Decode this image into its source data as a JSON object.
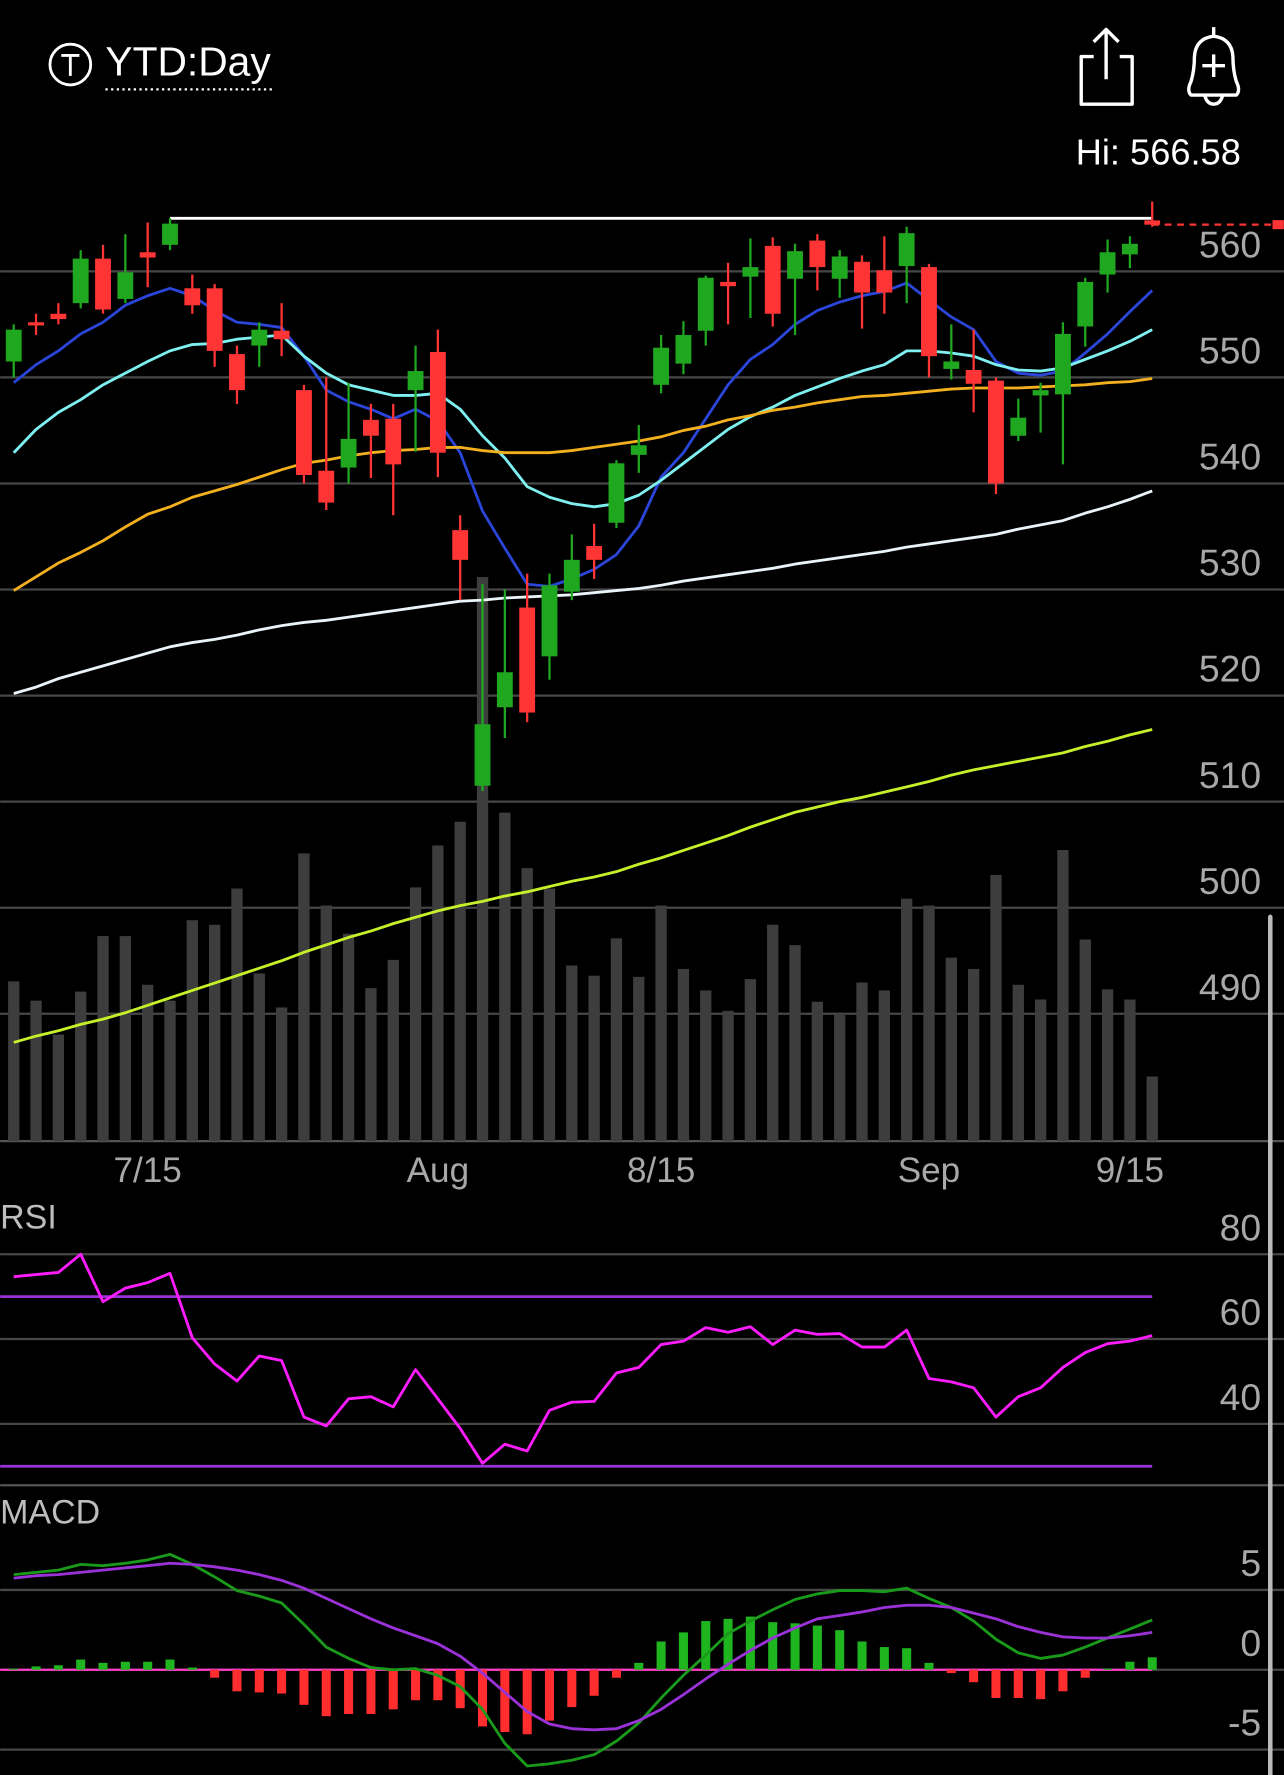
{
  "header": {
    "range": "YTD:Day",
    "high": "Hi: 566.58"
  },
  "chart_data": [
    {
      "type": "candlestick",
      "categories": [
        null,
        null,
        null,
        null,
        null,
        null,
        "7/15",
        null,
        null,
        null,
        null,
        null,
        null,
        null,
        null,
        null,
        null,
        null,
        null,
        "Aug",
        null,
        null,
        null,
        null,
        null,
        null,
        null,
        null,
        null,
        "8/15",
        null,
        null,
        null,
        null,
        null,
        null,
        null,
        null,
        null,
        null,
        null,
        "Sep",
        null,
        null,
        null,
        null,
        null,
        null,
        null,
        null,
        "9/15",
        null
      ],
      "open": [
        551.5,
        555.2,
        556,
        557,
        561.2,
        557.4,
        561.8,
        562.5,
        558.4,
        558.4,
        552.2,
        553,
        554.4,
        548.8,
        541.2,
        541.5,
        546,
        546.1,
        548.8,
        552.4,
        535.6,
        511.5,
        518.9,
        528.3,
        523.7,
        529.8,
        534.1,
        536.3,
        542.7,
        549.3,
        551.3,
        554.4,
        559,
        559.5,
        562.4,
        559.3,
        562.9,
        559.3,
        560.9,
        560.1,
        560.5,
        560.4,
        550.8,
        550.7,
        549.7,
        544.5,
        548.3,
        548.4,
        554.8,
        559.7,
        561.6,
        564.8
      ],
      "close": [
        554.5,
        554.9,
        555.5,
        561.2,
        556.4,
        559.9,
        561.3,
        564.5,
        556.8,
        552.5,
        548.8,
        554.5,
        553.6,
        540.8,
        538.2,
        544.2,
        544.5,
        541.8,
        550.6,
        542.9,
        532.8,
        517.3,
        522.2,
        518.4,
        530.4,
        532.8,
        532.8,
        541.9,
        543.6,
        552.8,
        554,
        559.4,
        558.6,
        560.4,
        556,
        561.9,
        560.4,
        561.4,
        558,
        558,
        563.6,
        552,
        551.5,
        549.4,
        540,
        546.2,
        548.8,
        554.1,
        559,
        561.8,
        562.6,
        564.4
      ],
      "high": [
        555,
        556,
        557,
        562,
        562.5,
        563.5,
        564.6,
        565,
        559.7,
        558.8,
        553,
        555.2,
        557,
        549.3,
        550,
        549.5,
        547.5,
        547.5,
        553,
        554.5,
        537,
        530.5,
        530,
        531.5,
        531.5,
        535.2,
        536.2,
        542.2,
        545.5,
        554,
        555.3,
        559.6,
        560.8,
        563.1,
        563.2,
        562.6,
        563.5,
        562,
        561.5,
        563.3,
        564.2,
        560.7,
        555,
        554.5,
        550,
        548,
        549.5,
        555.2,
        559.4,
        563,
        563.3,
        566.58
      ],
      "low": [
        550,
        554,
        555,
        556.5,
        556,
        557,
        558.5,
        562,
        556,
        551,
        547.5,
        551,
        552,
        540,
        537.5,
        540,
        540.5,
        537,
        543,
        540.6,
        529,
        511,
        516,
        517.5,
        521.5,
        529,
        531,
        535.8,
        541,
        548.5,
        550.3,
        553,
        555,
        555.6,
        554.8,
        554,
        558.2,
        557.5,
        554.6,
        556,
        557,
        550,
        549.8,
        546.7,
        539,
        544,
        544.8,
        541.8,
        552.9,
        558,
        560.3,
        564.2
      ],
      "up_color": "#1fa81f",
      "down_color": "#ff3535",
      "series": [
        {
          "color": "#2a45d8",
          "values": [
            549.5,
            551.2,
            552.5,
            554.1,
            555.2,
            556.8,
            557.7,
            558.4,
            557.7,
            556.3,
            555.2,
            555,
            554.7,
            552,
            548.8,
            547.7,
            547,
            546.1,
            547,
            545.9,
            542.9,
            537.4,
            533.9,
            530.5,
            530.3,
            531,
            531.9,
            533.3,
            536,
            540.6,
            542.9,
            546.1,
            549.3,
            551.7,
            553.1,
            555,
            556.3,
            557.1,
            557.7,
            558.1,
            558.9,
            557.3,
            555.7,
            554.5,
            551.5,
            550.4,
            550.2,
            550.6,
            552.3,
            554.1,
            556.2,
            558.2
          ]
        },
        {
          "color": "#7ff0f0",
          "values": [
            542.9,
            545.1,
            546.7,
            547.9,
            549.3,
            550.4,
            551.5,
            552.5,
            553.1,
            553.2,
            553.6,
            553.8,
            554,
            552,
            550.4,
            549.3,
            548.8,
            548.3,
            548.3,
            548.5,
            547,
            544.5,
            542.4,
            539.7,
            538.7,
            538.1,
            537.8,
            538.1,
            538.9,
            540.3,
            541.9,
            543.5,
            545.1,
            546.3,
            547.2,
            548.3,
            549.1,
            549.9,
            550.6,
            551.2,
            552.5,
            552.5,
            552.3,
            552,
            551.2,
            550.7,
            550.6,
            550.9,
            551.7,
            552.5,
            553.4,
            554.5
          ]
        },
        {
          "color": "#f2b01e",
          "values": [
            529.9,
            531.2,
            532.5,
            533.5,
            534.6,
            535.9,
            537.1,
            537.8,
            538.7,
            539.3,
            539.9,
            540.6,
            541.3,
            541.9,
            542.2,
            542.6,
            542.9,
            543.1,
            543.2,
            543.4,
            543.4,
            543.1,
            542.9,
            542.9,
            542.9,
            543.1,
            543.4,
            543.7,
            544,
            544.4,
            545,
            545.4,
            546,
            546.4,
            546.9,
            547.2,
            547.6,
            547.9,
            548.2,
            548.3,
            548.5,
            548.7,
            548.9,
            549,
            549,
            549,
            549.1,
            549.2,
            549.3,
            549.5,
            549.6,
            549.9
          ]
        },
        {
          "color": "#e8f4f8",
          "values": [
            520.2,
            520.8,
            521.6,
            522.2,
            522.8,
            523.4,
            524,
            524.6,
            525,
            525.3,
            525.7,
            526.2,
            526.6,
            526.9,
            527.1,
            527.4,
            527.7,
            528,
            528.3,
            528.6,
            528.9,
            529,
            529.2,
            529.3,
            529.4,
            529.5,
            529.7,
            529.9,
            530.1,
            530.4,
            530.8,
            531.1,
            531.4,
            531.7,
            532,
            532.4,
            532.7,
            533,
            533.3,
            533.6,
            534,
            534.3,
            534.6,
            534.9,
            535.2,
            535.7,
            536.1,
            536.5,
            537.2,
            537.8,
            538.5,
            539.3
          ]
        },
        {
          "color": "#c6f02a",
          "values": [
            487.3,
            487.9,
            488.4,
            489,
            489.5,
            490.1,
            490.8,
            491.5,
            492.2,
            492.9,
            493.6,
            494.3,
            495,
            495.8,
            496.5,
            497.2,
            497.8,
            498.5,
            499.1,
            499.7,
            500.2,
            500.6,
            501.1,
            501.5,
            502,
            502.5,
            502.9,
            503.4,
            504.1,
            504.7,
            505.4,
            506.1,
            506.8,
            507.6,
            508.3,
            509,
            509.5,
            510,
            510.4,
            510.9,
            511.4,
            511.9,
            512.5,
            513,
            513.4,
            513.8,
            514.2,
            514.6,
            515.2,
            515.7,
            516.3,
            516.8
          ]
        }
      ],
      "volume": {
        "color": "#3d3d3d",
        "values": [
          28.2,
          24.8,
          18.8,
          26.4,
          36.2,
          36.2,
          27.6,
          24.8,
          39,
          38.2,
          44.6,
          29.6,
          23.6,
          50.8,
          41.6,
          36.6,
          27,
          32,
          44.8,
          52.2,
          56.4,
          99.6,
          58,
          48.2,
          44.6,
          31,
          29.2,
          35.8,
          29,
          41.6,
          30.4,
          26.6,
          23,
          28.6,
          38.2,
          34.6,
          24.6,
          22.4,
          28,
          26.6,
          42.8,
          41.6,
          32.4,
          30.4,
          47,
          27.6,
          25,
          51.4,
          35.6,
          26.8,
          25,
          11.4
        ]
      },
      "high_line": 565,
      "ylim": [
        478,
        570
      ],
      "yticks": [
        490,
        500,
        510,
        520,
        530,
        540,
        550,
        560
      ],
      "grid": true
    },
    {
      "type": "line",
      "title": "RSI",
      "series": [
        {
          "color": "#ff1cff",
          "values": [
            74.7,
            75.2,
            75.7,
            80,
            68.8,
            72,
            73.3,
            75.5,
            60.3,
            54.1,
            50.1,
            56,
            54.9,
            41.6,
            39.5,
            45.9,
            46.4,
            44,
            52.8,
            45.9,
            38.9,
            30.7,
            35.2,
            33.6,
            43.2,
            45.1,
            45.3,
            52,
            53.3,
            58.7,
            59.5,
            62.7,
            61.6,
            62.9,
            58.7,
            62.1,
            61.1,
            61.3,
            58.1,
            58.1,
            62.1,
            50.7,
            49.9,
            48.5,
            41.6,
            46.4,
            48.5,
            53.3,
            56.8,
            58.9,
            59.5,
            60.8
          ]
        }
      ],
      "levels": [
        70,
        30
      ],
      "level_color": "#9a32d8",
      "ylim": [
        25,
        93
      ],
      "yticks": [
        40,
        60,
        80
      ],
      "grid": true
    },
    {
      "type": "macd",
      "title": "MACD",
      "series": [
        {
          "color": "#1a9a1a",
          "values": [
            5.96,
            6.1,
            6.24,
            6.6,
            6.52,
            6.67,
            6.88,
            7.23,
            6.6,
            5.82,
            4.96,
            4.61,
            4.18,
            2.84,
            1.42,
            0.71,
            0.14,
            0,
            0.07,
            -0.35,
            -1.06,
            -2.48,
            -4.61,
            -6.03,
            -5.89,
            -5.67,
            -5.32,
            -4.47,
            -3.33,
            -1.77,
            -0.35,
            0.92,
            2.27,
            3.05,
            3.76,
            4.4,
            4.75,
            4.96,
            4.96,
            4.89,
            5.11,
            4.47,
            3.9,
            3.05,
            1.91,
            1.06,
            0.71,
            0.92,
            1.42,
            1.99,
            2.55,
            3.12
          ]
        },
        {
          "color": "#9a32d8",
          "values": [
            5.74,
            5.89,
            5.96,
            6.1,
            6.24,
            6.38,
            6.52,
            6.67,
            6.6,
            6.45,
            6.24,
            5.96,
            5.6,
            5.11,
            4.47,
            3.83,
            3.19,
            2.62,
            2.13,
            1.63,
            0.85,
            -0.21,
            -1.42,
            -2.62,
            -3.4,
            -3.69,
            -3.76,
            -3.69,
            -3.19,
            -2.48,
            -1.56,
            -0.57,
            0.35,
            1.21,
            1.99,
            2.62,
            3.19,
            3.4,
            3.62,
            3.9,
            4.04,
            4.04,
            3.9,
            3.55,
            3.19,
            2.7,
            2.34,
            2.06,
            1.99,
            1.99,
            2.13,
            2.34
          ]
        }
      ],
      "histogram": {
        "up_color": "#1fb51f",
        "down_color": "#ff2d2d",
        "values": [
          0.07,
          0.21,
          0.28,
          0.64,
          0.43,
          0.5,
          0.5,
          0.64,
          0.14,
          -0.5,
          -1.35,
          -1.42,
          -1.49,
          -2.2,
          -2.91,
          -2.77,
          -2.77,
          -2.48,
          -1.91,
          -1.91,
          -2.41,
          -3.55,
          -3.9,
          -4.04,
          -3.19,
          -2.34,
          -1.63,
          -0.5,
          0.43,
          1.77,
          2.34,
          3.05,
          3.19,
          3.33,
          2.98,
          2.91,
          2.77,
          2.48,
          1.77,
          1.42,
          1.35,
          0.43,
          -0.21,
          -0.78,
          -1.77,
          -1.77,
          -1.84,
          -1.35,
          -0.5,
          0.07,
          0.5,
          0.78
        ]
      },
      "zero_color": "#ff3cc8",
      "ylim": [
        -6.6,
        11
      ],
      "yticks": [
        -5,
        0,
        5
      ],
      "grid": true
    }
  ]
}
